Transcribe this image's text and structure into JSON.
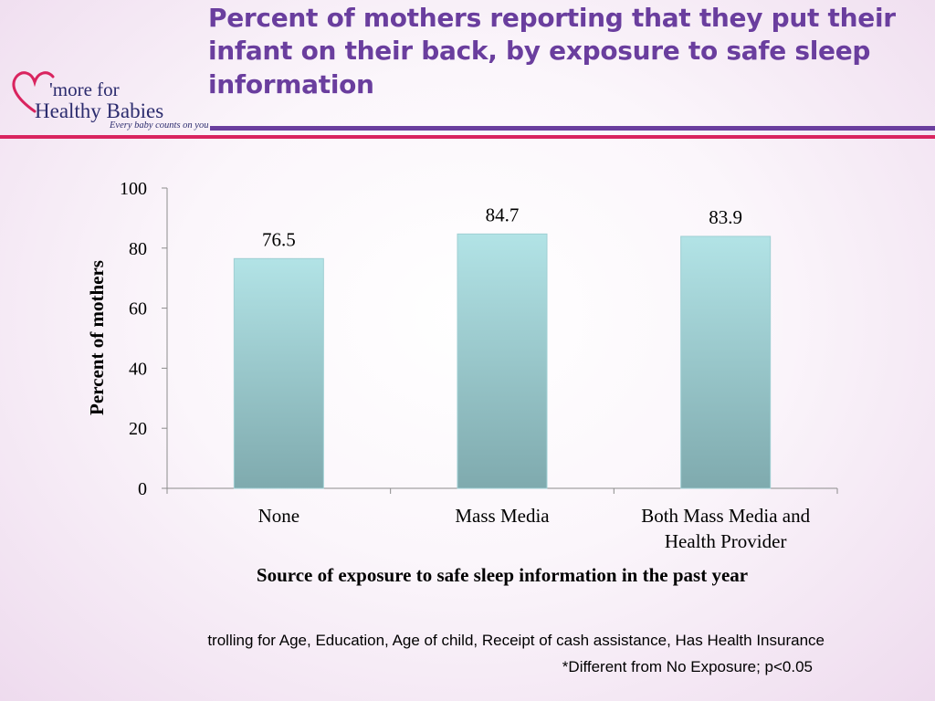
{
  "logo": {
    "brand_line1": "'more for",
    "brand_line2": "Healthy Babies",
    "tagline": "Every baby counts on you"
  },
  "title": "Percent of mothers reporting that they put their infant on their back, by exposure to safe sleep information",
  "colors": {
    "title": "#6a3e9e",
    "rule_purple": "#6a3e9e",
    "rule_pink": "#d9245f",
    "bar_top": "#b2e3e6",
    "bar_bottom": "#7faaae",
    "logo_heart": "#d9245f"
  },
  "chart_data": {
    "type": "bar",
    "categories": [
      [
        "None"
      ],
      [
        "Mass Media"
      ],
      [
        "Both Mass Media and",
        "Health Provider"
      ]
    ],
    "values": [
      76.5,
      84.7,
      83.9
    ],
    "data_labels": [
      "76.5",
      "84.7",
      "83.9"
    ],
    "xlabel": "Source of exposure to safe sleep information in the past year",
    "ylabel": "Percent of mothers",
    "ylim": [
      0,
      100
    ],
    "yticks": [
      0,
      20,
      40,
      60,
      80,
      100
    ],
    "grid": false,
    "legend": "none"
  },
  "footnotes": {
    "line1": "trolling for Age, Education, Age of child, Receipt of cash assistance, Has Health Insurance",
    "line2": "*Different from No Exposure; p<0.05"
  }
}
